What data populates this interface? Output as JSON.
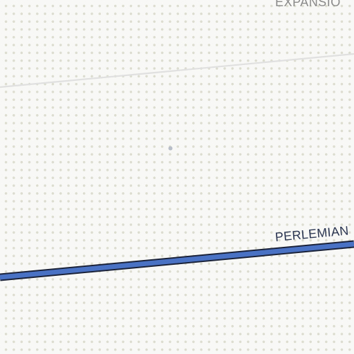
{
  "map": {
    "area_label": "EXPANSIO",
    "road_label": "PERLEMIAN",
    "colors": {
      "background": "#f8f8f6",
      "dot_pattern": "#dcdcd0",
      "major_road_fill": "#4a72c4",
      "major_road_casing": "#1a2238",
      "minor_road": "#e0e0e0",
      "poi_marker": "#b8bec8"
    }
  }
}
